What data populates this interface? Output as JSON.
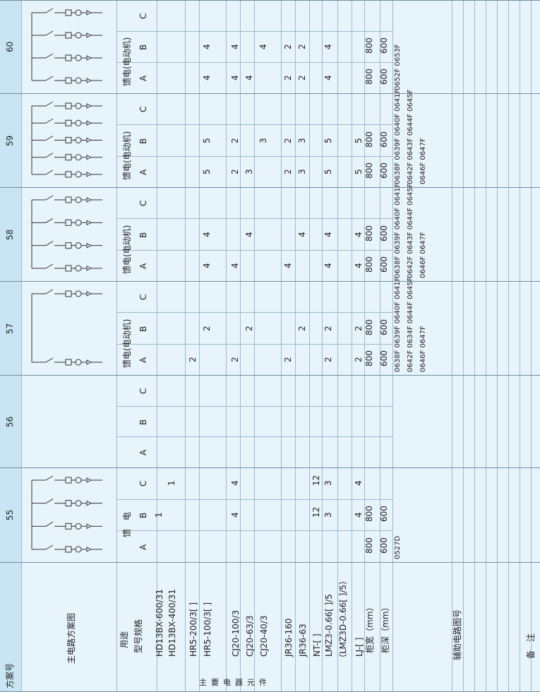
{
  "header": {
    "label": "方案号",
    "schemes": [
      "55",
      "56",
      "57",
      "58",
      "59",
      "60"
    ]
  },
  "row_labels": {
    "diagram": "主电路方案图",
    "use": "用途",
    "model": "型号规格",
    "main_components": "主要电器元件",
    "cabinet_width": "柜宽（mm）",
    "cabinet_depth": "柜深（mm）",
    "aux_diagram": "辅助电路图号",
    "remarks": "备　注"
  },
  "component_models": [
    "HD13BX-600/31",
    "HD13BX-400/31",
    "HR5-200/3[ ]",
    "HR5-100/3[ ]",
    "CJ20-100/3",
    "CJ20-63/3",
    "CJ20-40/3",
    "JR36-160",
    "JR36-63",
    "NT-[ ]",
    "LMZ3-0.66[ ]/5",
    "（LMZ3D-0.66[ ]/5）",
    "LJ-[ ]"
  ],
  "sub_columns": [
    "A",
    "B",
    "C"
  ],
  "schemes": [
    {
      "id": "55",
      "use": "馈　电",
      "cells": [
        [
          "",
          "1",
          ""
        ],
        [
          "",
          "",
          "1"
        ],
        [
          "",
          "",
          ""
        ],
        [
          "",
          "",
          ""
        ],
        [
          "",
          "4",
          "4"
        ],
        [
          "",
          "",
          ""
        ],
        [
          "",
          "",
          ""
        ],
        [
          "",
          "",
          ""
        ],
        [
          "",
          "",
          ""
        ],
        [
          "",
          "12",
          "12"
        ],
        [
          "",
          "3",
          "3"
        ],
        [
          "",
          "",
          ""
        ],
        [
          "",
          "4",
          "4"
        ]
      ],
      "width": [
        "800",
        "800"
      ],
      "depth": [
        "600",
        "600"
      ],
      "aux": [
        "0527D"
      ]
    },
    {
      "id": "56",
      "use": "",
      "cells": [],
      "width": [],
      "depth": [],
      "aux": []
    },
    {
      "id": "57",
      "use": "馈电(电动机)",
      "cells": [
        [
          "",
          "",
          ""
        ],
        [
          "",
          "",
          ""
        ],
        [
          "2",
          "",
          ""
        ],
        [
          "",
          "2",
          ""
        ],
        [
          "2",
          "",
          ""
        ],
        [
          "",
          "2",
          ""
        ],
        [
          "",
          "",
          ""
        ],
        [
          "2",
          "",
          ""
        ],
        [
          "",
          "2",
          ""
        ],
        [
          "",
          "",
          ""
        ],
        [
          "2",
          "2",
          ""
        ],
        [
          "",
          "",
          ""
        ],
        [
          "2",
          "2",
          ""
        ]
      ],
      "width": [
        "800",
        "800"
      ],
      "depth": [
        "600",
        "600"
      ],
      "aux": [
        "0638F 0639F 0640F 0641F",
        "0642F 0634F 0644F 0645F",
        "0646F 0647F"
      ]
    },
    {
      "id": "58",
      "use": "馈电(电动机)",
      "cells": [
        [
          "",
          "",
          ""
        ],
        [
          "",
          "",
          ""
        ],
        [
          "",
          "",
          ""
        ],
        [
          "4",
          "4",
          ""
        ],
        [
          "4",
          "",
          ""
        ],
        [
          "",
          "4",
          ""
        ],
        [
          "",
          "",
          ""
        ],
        [
          "4",
          "",
          ""
        ],
        [
          "",
          "4",
          ""
        ],
        [
          "",
          "",
          ""
        ],
        [
          "4",
          "4",
          ""
        ],
        [
          "",
          "",
          ""
        ],
        [
          "4",
          "4",
          ""
        ]
      ],
      "width": [
        "800",
        "800"
      ],
      "depth": [
        "600",
        "600"
      ],
      "aux": [
        "0638F 0639F 0640F 0641F",
        "0642F 0643F 0644F 0645F",
        "0646F 0647F"
      ]
    },
    {
      "id": "59",
      "use": "馈电(电动机)",
      "cells": [
        [
          "",
          "",
          ""
        ],
        [
          "",
          "",
          ""
        ],
        [
          "",
          "",
          ""
        ],
        [
          "5",
          "5",
          ""
        ],
        [
          "2",
          "2",
          ""
        ],
        [
          "3",
          "",
          ""
        ],
        [
          "",
          "3",
          ""
        ],
        [
          "2",
          "2",
          ""
        ],
        [
          "3",
          "3",
          ""
        ],
        [
          "",
          "",
          ""
        ],
        [
          "5",
          "5",
          ""
        ],
        [
          "",
          "",
          ""
        ],
        [
          "5",
          "5",
          ""
        ]
      ],
      "width": [
        "800",
        "800"
      ],
      "depth": [
        "600",
        "600"
      ],
      "aux": [
        "0638F 0639F 0640F 0641F",
        "0642F 0643F 0644F 0645F",
        "0646F 0647F"
      ]
    },
    {
      "id": "60",
      "use": "馈电(电动机)",
      "cells": [
        [
          "",
          "",
          ""
        ],
        [
          "",
          "",
          ""
        ],
        [
          "",
          "",
          ""
        ],
        [
          "4",
          "4",
          ""
        ],
        [
          "4",
          "4",
          ""
        ],
        [
          "4",
          "",
          ""
        ],
        [
          "",
          "4",
          ""
        ],
        [
          "2",
          "2",
          ""
        ],
        [
          "2",
          "2",
          ""
        ],
        [
          "",
          "",
          ""
        ],
        [
          "4",
          "4",
          ""
        ],
        [
          "",
          "",
          ""
        ],
        [
          "",
          "",
          ""
        ]
      ],
      "width": [
        "800",
        "800"
      ],
      "depth": [
        "600",
        "600"
      ],
      "aux": [
        "0652F 0653F"
      ]
    }
  ]
}
